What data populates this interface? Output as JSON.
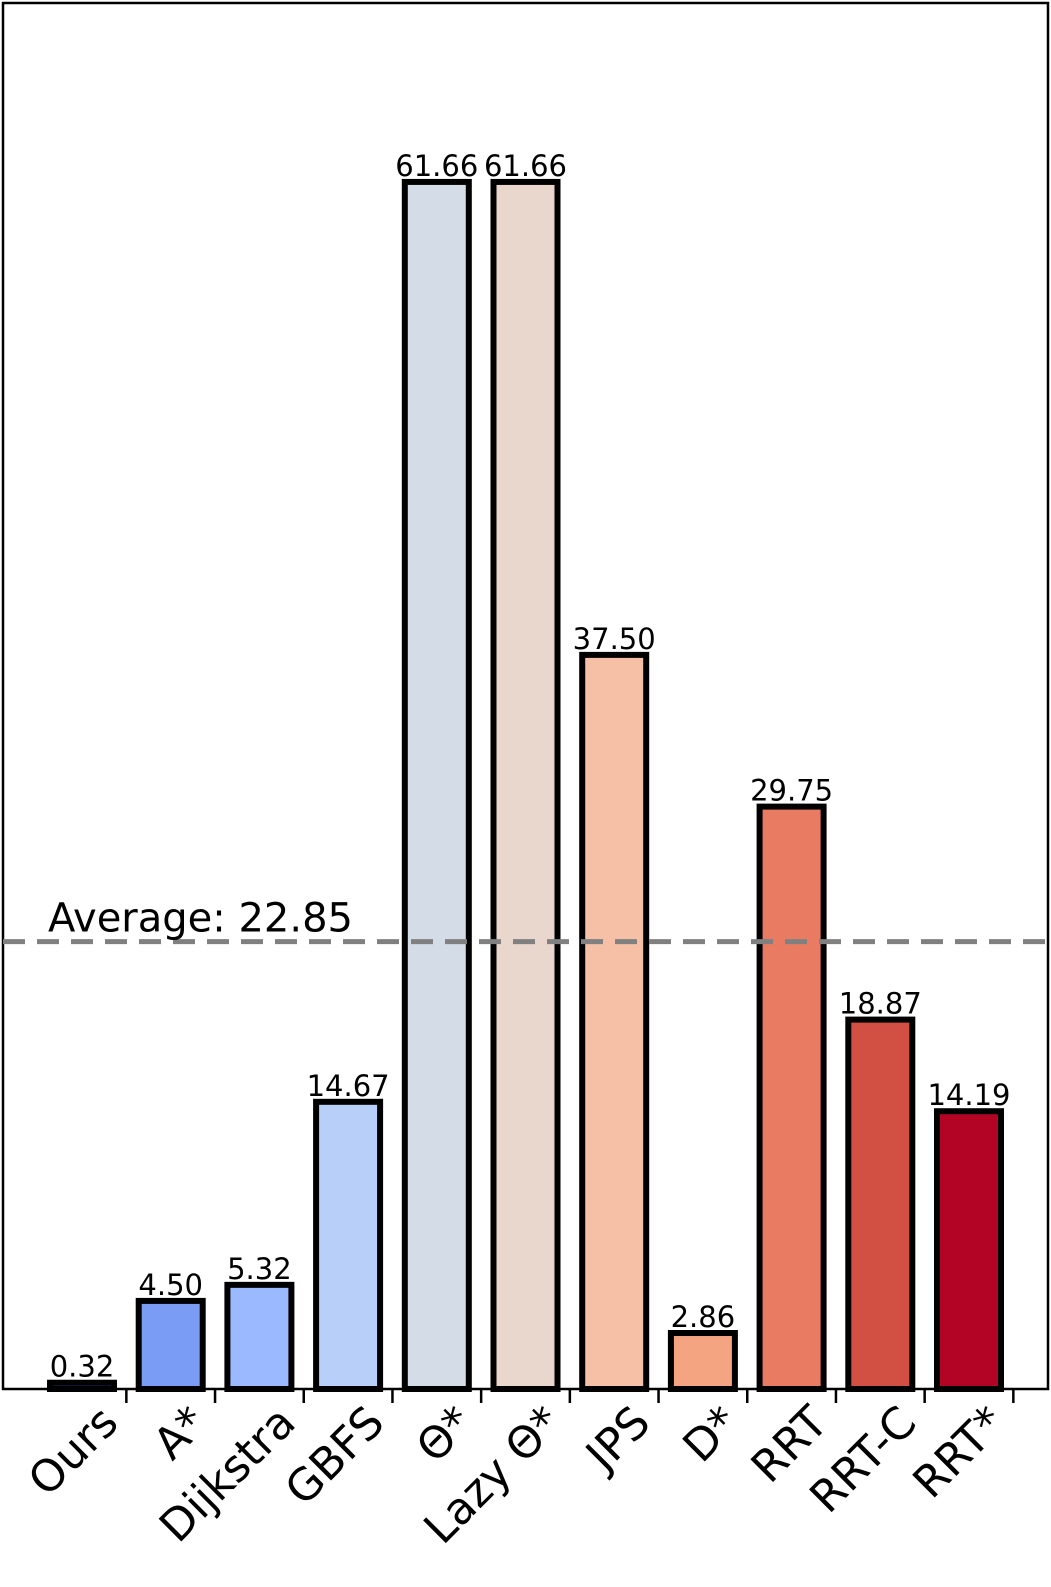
{
  "chart_data": {
    "type": "bar",
    "title": "",
    "xlabel": "",
    "ylabel": "",
    "ylim": [
      0,
      70.8
    ],
    "grid": false,
    "categories": [
      "Ours",
      "A*",
      "Dijkstra",
      "GBFS",
      "Θ*",
      "Lazy Θ*",
      "JPS",
      "D*",
      "RRT",
      "RRT-C",
      "RRT*"
    ],
    "values": [
      0.32,
      4.5,
      5.32,
      14.67,
      61.66,
      61.66,
      37.5,
      2.86,
      29.75,
      18.87,
      14.19
    ],
    "value_labels": [
      "0.32",
      "4.50",
      "5.32",
      "14.67",
      "61.66",
      "61.66",
      "37.50",
      "2.86",
      "29.75",
      "18.87",
      "14.19"
    ],
    "colors": [
      "#3b4cc0",
      "#7a9cf4",
      "#9ab9fe",
      "#b8cff9",
      "#d3dce7",
      "#e9d6cd",
      "#f5c0a6",
      "#f4a480",
      "#e87b62",
      "#d24f44",
      "#b40426"
    ],
    "average": {
      "value": 22.85,
      "label": "Average: 22.85",
      "color": "#808080"
    }
  }
}
